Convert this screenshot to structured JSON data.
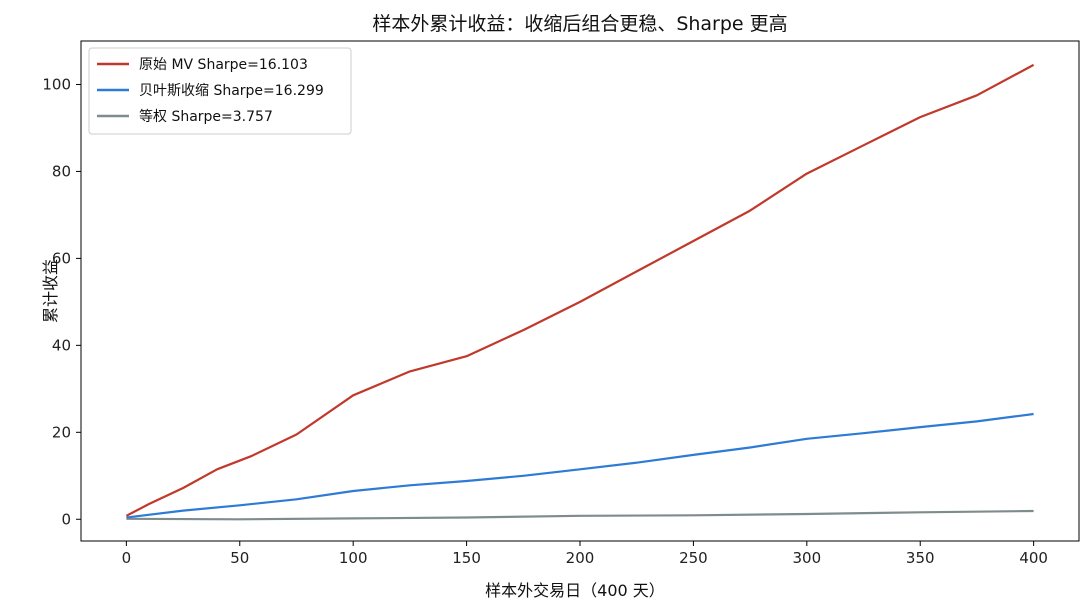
{
  "chart_data": {
    "type": "line",
    "title": "样本外累计收益：收缩后组合更稳、Sharpe 更高",
    "xlabel": "样本外交易日（400 天）",
    "ylabel": "累计收益",
    "xlim": [
      -20,
      420
    ],
    "ylim": [
      -5,
      110
    ],
    "xticks": [
      0,
      50,
      100,
      150,
      200,
      250,
      300,
      350,
      400
    ],
    "yticks": [
      0,
      20,
      40,
      60,
      80,
      100
    ],
    "grid": false,
    "legend_position": "top-left",
    "series": [
      {
        "name": "原始 MV  Sharpe=16.103",
        "color": "#c0392b",
        "x": [
          0,
          10,
          25,
          40,
          55,
          75,
          100,
          125,
          150,
          175,
          200,
          225,
          250,
          275,
          300,
          325,
          350,
          375,
          400
        ],
        "y": [
          0.8,
          3.5,
          7.2,
          11.5,
          14.5,
          19.5,
          28.5,
          34.0,
          37.5,
          43.5,
          50.0,
          57.0,
          64.0,
          71.0,
          79.5,
          86.0,
          92.5,
          97.5,
          104.5
        ]
      },
      {
        "name": "贝叶斯收缩  Sharpe=16.299",
        "color": "#2e7bd6",
        "x": [
          0,
          25,
          50,
          75,
          100,
          125,
          150,
          175,
          200,
          225,
          250,
          275,
          300,
          325,
          350,
          375,
          400
        ],
        "y": [
          0.4,
          2.0,
          3.2,
          4.6,
          6.5,
          7.8,
          8.8,
          10.0,
          11.5,
          13.0,
          14.8,
          16.5,
          18.5,
          19.8,
          21.2,
          22.5,
          24.2
        ]
      },
      {
        "name": "等权  Sharpe=3.757",
        "color": "#7f8c8d",
        "x": [
          0,
          50,
          100,
          150,
          200,
          250,
          300,
          350,
          400
        ],
        "y": [
          0.1,
          0.0,
          0.2,
          0.4,
          0.8,
          0.9,
          1.2,
          1.6,
          1.9
        ]
      }
    ]
  }
}
